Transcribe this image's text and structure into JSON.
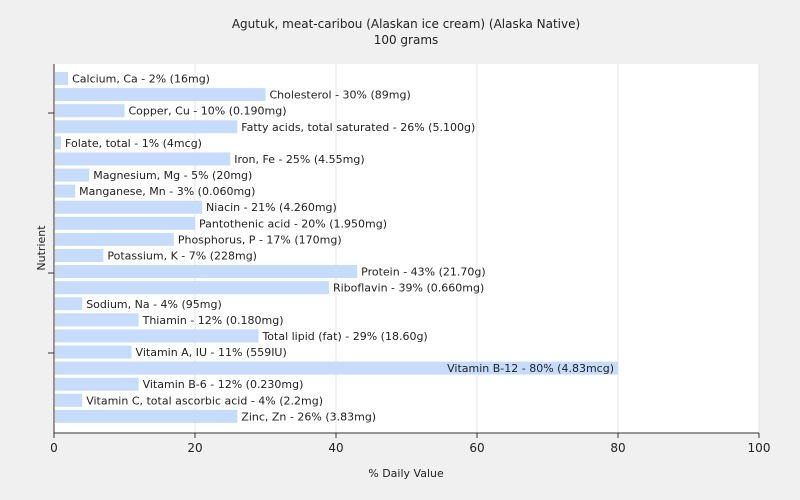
{
  "chart_data": {
    "type": "bar",
    "orientation": "horizontal",
    "title": "Agutuk, meat-caribou (Alaskan ice cream) (Alaska Native)",
    "subtitle": "100 grams",
    "xlabel": "% Daily Value",
    "ylabel": "Nutrient",
    "xlim": [
      0,
      100
    ],
    "xticks": [
      "0",
      "20",
      "40",
      "60",
      "80",
      "100"
    ],
    "grid": true,
    "bar_color": "#c6dcfa",
    "bars": [
      {
        "value": 2,
        "label": "Calcium, Ca - 2% (16mg)"
      },
      {
        "value": 30,
        "label": "Cholesterol - 30% (89mg)"
      },
      {
        "value": 10,
        "label": "Copper, Cu - 10% (0.190mg)"
      },
      {
        "value": 26,
        "label": "Fatty acids, total saturated - 26% (5.100g)"
      },
      {
        "value": 1,
        "label": "Folate, total - 1% (4mcg)"
      },
      {
        "value": 25,
        "label": "Iron, Fe - 25% (4.55mg)"
      },
      {
        "value": 5,
        "label": "Magnesium, Mg - 5% (20mg)"
      },
      {
        "value": 3,
        "label": "Manganese, Mn - 3% (0.060mg)"
      },
      {
        "value": 21,
        "label": "Niacin - 21% (4.260mg)"
      },
      {
        "value": 20,
        "label": "Pantothenic acid - 20% (1.950mg)"
      },
      {
        "value": 17,
        "label": "Phosphorus, P - 17% (170mg)"
      },
      {
        "value": 7,
        "label": "Potassium, K - 7% (228mg)"
      },
      {
        "value": 43,
        "label": "Protein - 43% (21.70g)"
      },
      {
        "value": 39,
        "label": "Riboflavin - 39% (0.660mg)"
      },
      {
        "value": 4,
        "label": "Sodium, Na - 4% (95mg)"
      },
      {
        "value": 12,
        "label": "Thiamin - 12% (0.180mg)"
      },
      {
        "value": 29,
        "label": "Total lipid (fat) - 29% (18.60g)"
      },
      {
        "value": 11,
        "label": "Vitamin A, IU - 11% (559IU)"
      },
      {
        "value": 80,
        "label": "Vitamin B-12 - 80% (4.83mcg)"
      },
      {
        "value": 12,
        "label": "Vitamin B-6 - 12% (0.230mg)"
      },
      {
        "value": 4,
        "label": "Vitamin C, total ascorbic acid - 4% (2.2mg)"
      },
      {
        "value": 26,
        "label": "Zinc, Zn - 26% (3.83mg)"
      }
    ]
  }
}
